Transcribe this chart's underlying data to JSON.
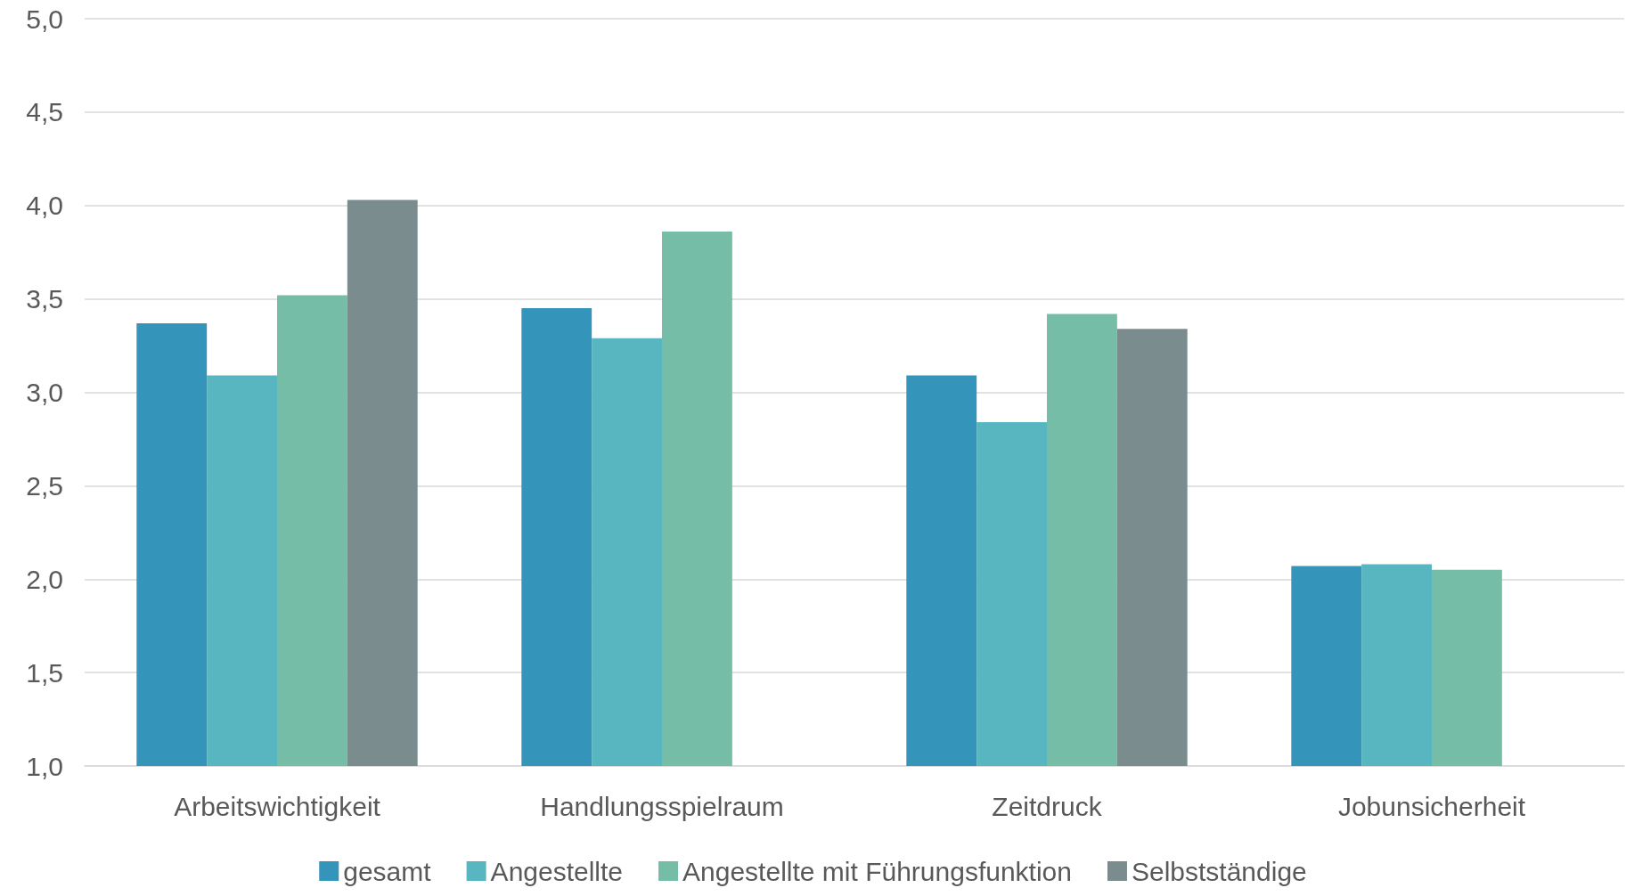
{
  "chart_data": {
    "type": "bar",
    "categories": [
      "Arbeitswichtigkeit",
      "Handlungsspielraum",
      "Zeitdruck",
      "Jobunsicherheit"
    ],
    "series": [
      {
        "name": "gesamt",
        "color": "#3494ba",
        "values": [
          3.37,
          3.45,
          3.09,
          2.07
        ]
      },
      {
        "name": "Angestellte",
        "color": "#58b6c0",
        "values": [
          3.09,
          3.29,
          2.84,
          2.08
        ]
      },
      {
        "name": "Angestellte mit Führungsfunktion",
        "color": "#75bda7",
        "values": [
          3.52,
          3.86,
          3.42,
          2.05
        ]
      },
      {
        "name": "Selbstständige",
        "color": "#7a8c8e",
        "values": [
          4.03,
          null,
          3.34,
          null
        ]
      }
    ],
    "ylim": [
      1,
      5
    ],
    "yticks": [
      {
        "value": 1,
        "label": "1,0"
      },
      {
        "value": 1.5,
        "label": "1,5"
      },
      {
        "value": 2,
        "label": "2,0"
      },
      {
        "value": 2.5,
        "label": "2,5"
      },
      {
        "value": 3,
        "label": "3,0"
      },
      {
        "value": 3.5,
        "label": "3,5"
      },
      {
        "value": 4,
        "label": "4,0"
      },
      {
        "value": 4.5,
        "label": "4,5"
      },
      {
        "value": 5,
        "label": "5,0"
      }
    ],
    "grid": "y",
    "legend": "bottom"
  }
}
